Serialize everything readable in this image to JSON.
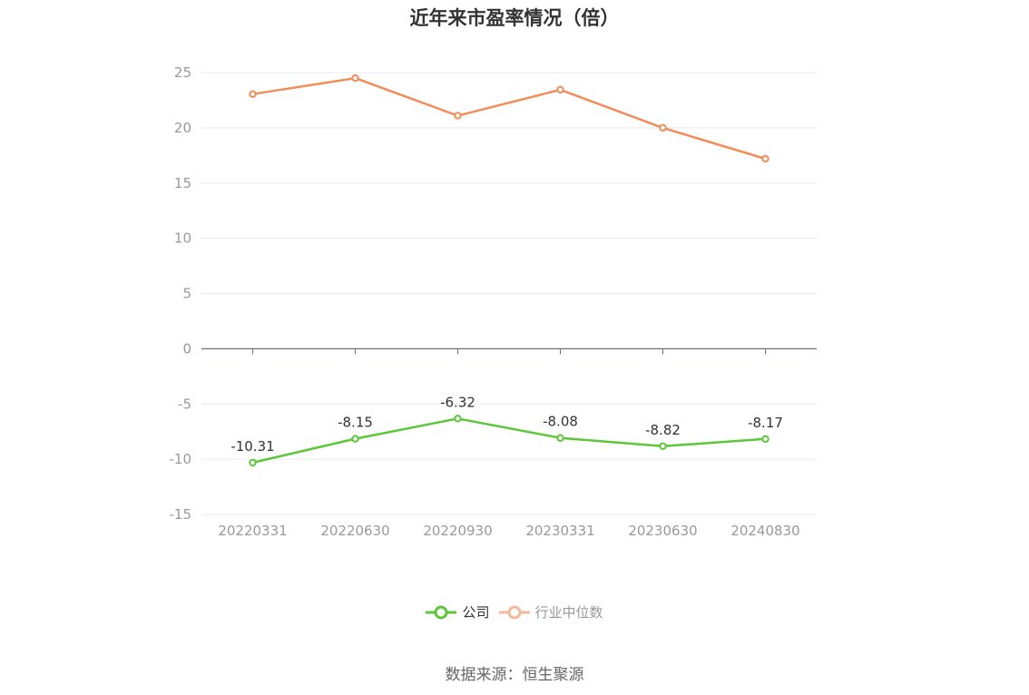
{
  "title": "近年来市盈率情况（倍）",
  "source": "数据来源：恒生聚源",
  "chart_data": {
    "type": "line",
    "categories": [
      "20220331",
      "20220630",
      "20220930",
      "20230331",
      "20230630",
      "20240830"
    ],
    "ylim": [
      -15,
      25
    ],
    "yticks": [
      25,
      20,
      15,
      10,
      5,
      0,
      -5,
      -10,
      -15
    ],
    "grid": true,
    "legend_position": "bottom",
    "series": [
      {
        "name": "公司",
        "values": [
          -10.31,
          -8.15,
          -6.32,
          -8.08,
          -8.82,
          -8.17
        ],
        "labels": [
          "-10.31",
          "-8.15",
          "-6.32",
          "-8.08",
          "-8.82",
          "-8.17"
        ],
        "show_labels": true,
        "color": "#5dc73a"
      },
      {
        "name": "行业中位数",
        "values": [
          23.05,
          24.5,
          21.1,
          23.45,
          20.0,
          17.2
        ],
        "show_labels": false,
        "color": "#f28c58",
        "legend_color": "#f8b79a"
      }
    ]
  }
}
